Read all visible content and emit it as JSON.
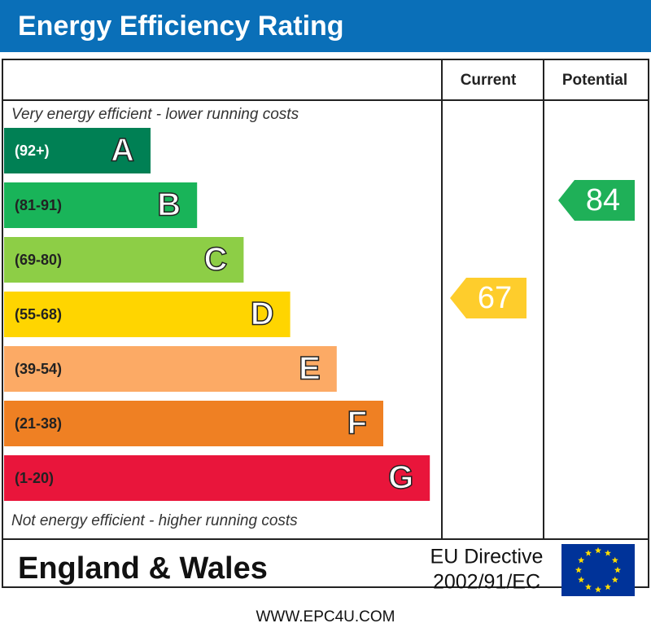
{
  "header": {
    "title": "Energy Efficiency Rating"
  },
  "columns": {
    "current": "Current",
    "potential": "Potential"
  },
  "top_note": "Very energy efficient - lower running costs",
  "bottom_note": "Not energy efficient - higher running costs",
  "bands": [
    {
      "range": "(92+)",
      "letter": "A",
      "color": "#008054"
    },
    {
      "range": "(81-91)",
      "letter": "B",
      "color": "#19b459"
    },
    {
      "range": "(69-80)",
      "letter": "C",
      "color": "#8dce46"
    },
    {
      "range": "(55-68)",
      "letter": "D",
      "color": "#ffd500"
    },
    {
      "range": "(39-54)",
      "letter": "E",
      "color": "#fcaa65"
    },
    {
      "range": "(21-38)",
      "letter": "F",
      "color": "#ef8023"
    },
    {
      "range": "(1-20)",
      "letter": "G",
      "color": "#e9153b"
    }
  ],
  "current": {
    "value": 67,
    "color": "#fecd2c"
  },
  "potential": {
    "value": 84,
    "color": "#1fb058"
  },
  "footer": {
    "region": "England & Wales",
    "directive": [
      "EU Directive",
      "2002/91/EC"
    ],
    "url": "WWW.EPC4U.COM"
  }
}
